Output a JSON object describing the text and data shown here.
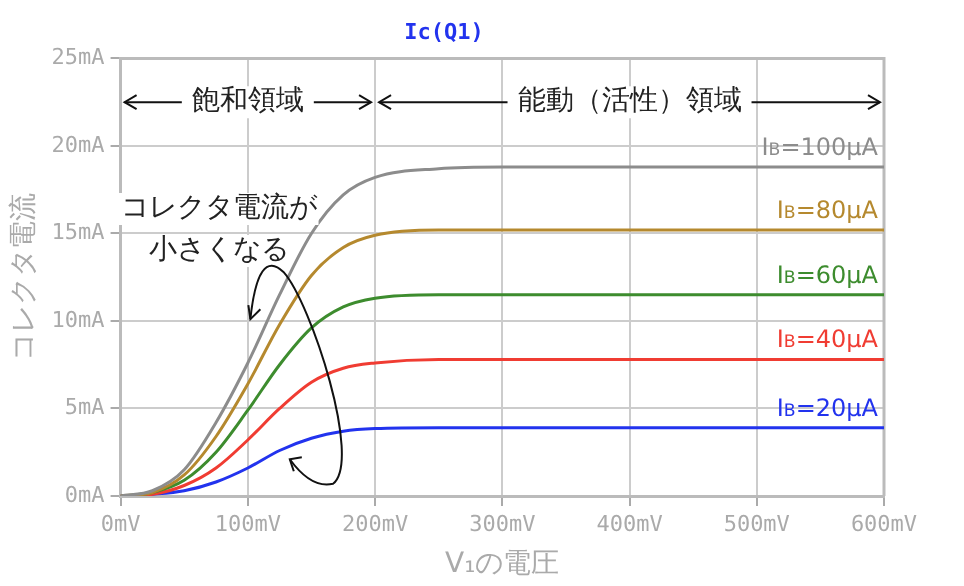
{
  "chart_data": {
    "type": "line",
    "title": "Ic(Q1)",
    "xlabel": "V₁の電圧",
    "ylabel": "コレクタ電流",
    "x": [
      0,
      25,
      50,
      75,
      100,
      125,
      150,
      175,
      200,
      250,
      300,
      400,
      500,
      600
    ],
    "series": [
      {
        "name": "I$_{B}$=100μA",
        "color": "#8c8c8c",
        "values": [
          0,
          0.3,
          1.5,
          4.2,
          7.6,
          11.5,
          15.0,
          17.2,
          18.2,
          18.7,
          18.8,
          18.8,
          18.8,
          18.8
        ]
      },
      {
        "name": "I$_{B}$=80μA",
        "color": "#b5892e",
        "values": [
          0,
          0.2,
          1.2,
          3.4,
          6.4,
          9.8,
          12.6,
          14.2,
          14.9,
          15.2,
          15.2,
          15.2,
          15.2,
          15.2
        ]
      },
      {
        "name": "I$_{B}$=60μA",
        "color": "#3d8c2e",
        "values": [
          0,
          0.2,
          0.9,
          2.5,
          4.9,
          7.5,
          9.6,
          10.8,
          11.3,
          11.5,
          11.5,
          11.5,
          11.5,
          11.5
        ]
      },
      {
        "name": "I$_{B}$=40μA",
        "color": "#f03c32",
        "values": [
          0,
          0.1,
          0.6,
          1.6,
          3.2,
          5.0,
          6.5,
          7.3,
          7.6,
          7.8,
          7.8,
          7.8,
          7.8,
          7.8
        ]
      },
      {
        "name": "I$_{B}$=20μA",
        "color": "#2233ee",
        "values": [
          0,
          0.1,
          0.3,
          0.8,
          1.6,
          2.6,
          3.3,
          3.7,
          3.85,
          3.9,
          3.9,
          3.9,
          3.9,
          3.9
        ]
      }
    ],
    "xlim": [
      0,
      600
    ],
    "xticks": [
      {
        "value": 0,
        "label": "0mV"
      },
      {
        "value": 100,
        "label": "100mV"
      },
      {
        "value": 200,
        "label": "200mV"
      },
      {
        "value": 300,
        "label": "300mV"
      },
      {
        "value": 400,
        "label": "400mV"
      },
      {
        "value": 500,
        "label": "500mV"
      },
      {
        "value": 600,
        "label": "600mV"
      }
    ],
    "ylim": [
      0,
      25
    ],
    "yticks": [
      {
        "value": 0,
        "label": "0mA"
      },
      {
        "value": 5,
        "label": "5mA"
      },
      {
        "value": 10,
        "label": "10mA"
      },
      {
        "value": 15,
        "label": "15mA"
      },
      {
        "value": 20,
        "label": "20mA"
      },
      {
        "value": 25,
        "label": "25mA"
      }
    ],
    "annotations": [
      "飽和領域",
      "能動（活性）領域",
      "コレクタ電流が小さくなる"
    ],
    "grid": true,
    "legend": false,
    "marker": "none",
    "line_style": "solid"
  }
}
